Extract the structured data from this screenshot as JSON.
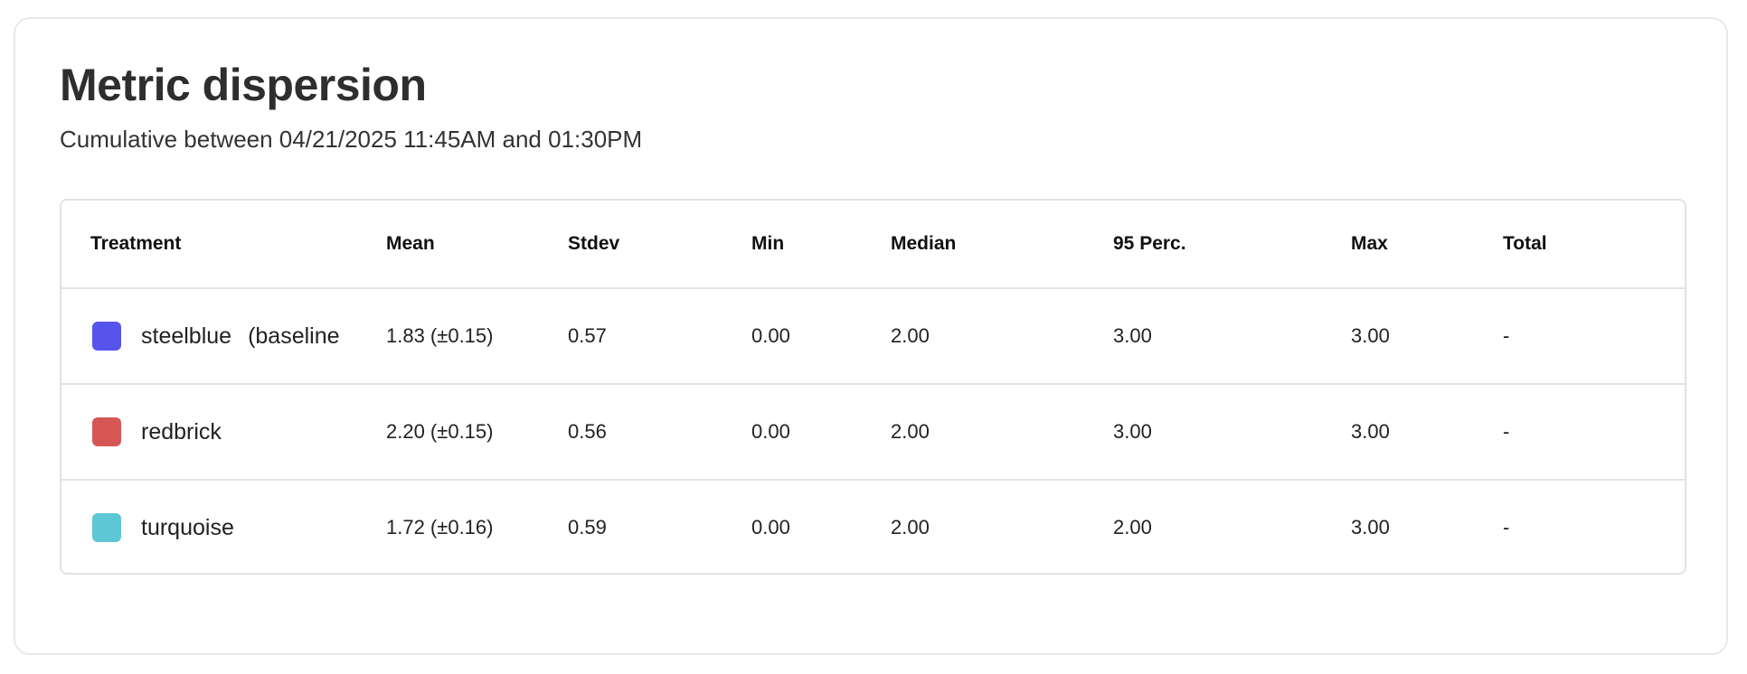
{
  "title": "Metric dispersion",
  "subtitle": "Cumulative between 04/21/2025 11:45AM and 01:30PM",
  "table": {
    "columns": [
      "Treatment",
      "Mean",
      "Stdev",
      "Min",
      "Median",
      "95 Perc.",
      "Max",
      "Total"
    ],
    "rows": [
      {
        "name": "steelblue",
        "tag": "(baseline",
        "color": "#5754EE",
        "mean": "1.83 (±0.15)",
        "stdev": "0.57",
        "min": "0.00",
        "median": "2.00",
        "p95": "3.00",
        "max": "3.00",
        "total": "-"
      },
      {
        "name": "redbrick",
        "tag": "",
        "color": "#D65656",
        "mean": "2.20 (±0.15)",
        "stdev": "0.56",
        "min": "0.00",
        "median": "2.00",
        "p95": "3.00",
        "max": "3.00",
        "total": "-"
      },
      {
        "name": "turquoise",
        "tag": "",
        "color": "#5EC7D5",
        "mean": "1.72 (±0.16)",
        "stdev": "0.59",
        "min": "0.00",
        "median": "2.00",
        "p95": "2.00",
        "max": "3.00",
        "total": "-"
      }
    ]
  }
}
